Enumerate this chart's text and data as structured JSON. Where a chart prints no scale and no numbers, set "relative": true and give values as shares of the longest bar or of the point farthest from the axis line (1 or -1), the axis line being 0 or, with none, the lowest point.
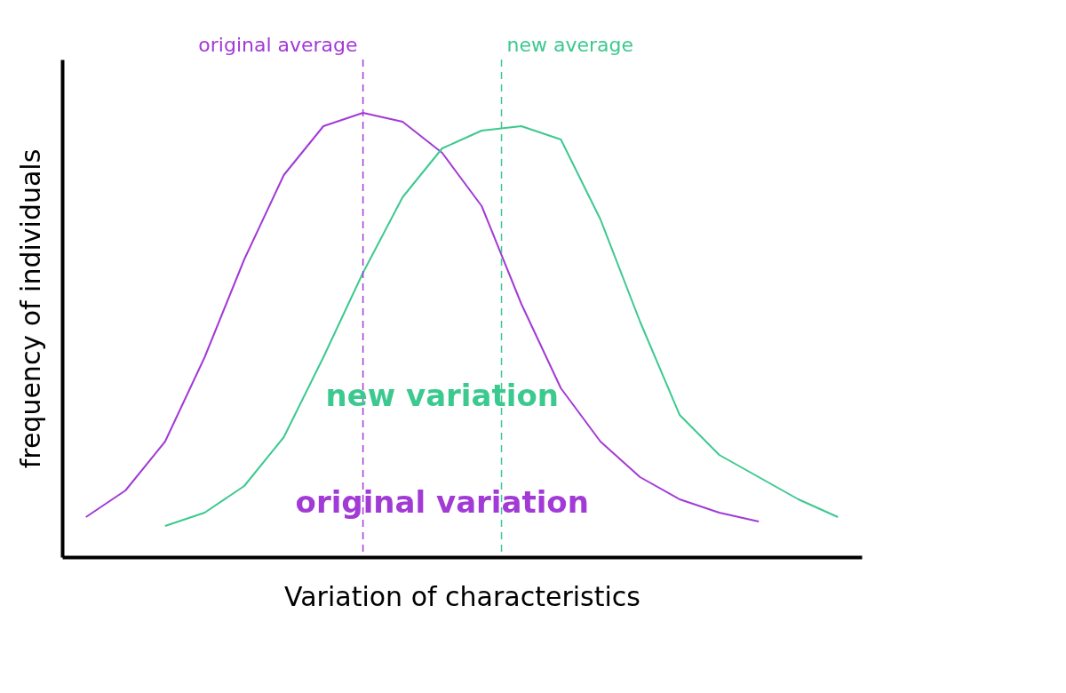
{
  "chart_data": {
    "type": "line",
    "relative": true,
    "xlabel": "Variation of characteristics",
    "ylabel": "frequency of individuals",
    "categories": [
      null,
      null,
      null,
      null,
      null,
      null,
      null,
      null,
      null,
      null,
      null,
      null,
      null,
      null,
      null,
      null,
      null,
      null,
      null,
      null
    ],
    "series": [
      {
        "color": "#a23ad6",
        "values": [
          0.09,
          0.15,
          0.26,
          0.45,
          0.67,
          0.86,
          0.97,
          1.0,
          0.98,
          0.91,
          0.79,
          0.57,
          0.38,
          0.26,
          0.18,
          0.13,
          0.1,
          0.08,
          null,
          null
        ]
      },
      {
        "color": "#3cc98f",
        "values": [
          null,
          null,
          0.07,
          0.1,
          0.16,
          0.27,
          0.45,
          0.64,
          0.81,
          0.92,
          0.96,
          0.97,
          0.94,
          0.76,
          0.53,
          0.32,
          0.23,
          0.18,
          0.13,
          0.09
        ]
      }
    ],
    "annotations": [
      "original average",
      "new average",
      "new variation",
      "original variation"
    ],
    "grid": false,
    "tick_labels": false,
    "line_style": "solid"
  }
}
